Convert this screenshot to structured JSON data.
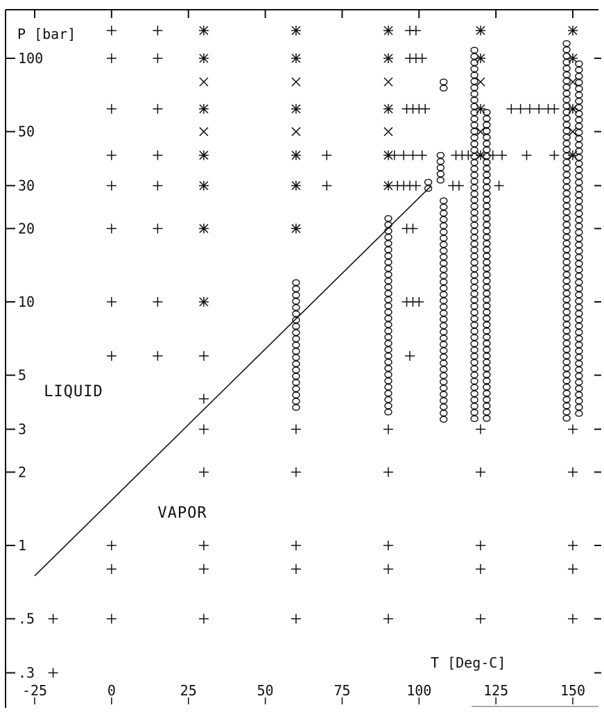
{
  "chart_data": {
    "type": "scatter",
    "title": "",
    "xlabel": "T [Deg-C]",
    "ylabel": "P [bar]",
    "x_scale": "linear",
    "y_scale": "log",
    "xlim": [
      -25,
      160
    ],
    "ylim": [
      0.25,
      150
    ],
    "x_ticks": [
      -25,
      0,
      25,
      50,
      75,
      100,
      125,
      150
    ],
    "x_tick_labels": [
      "-25",
      "0",
      "25",
      "50",
      "75",
      "100",
      "125",
      "150"
    ],
    "y_ticks": [
      100,
      50,
      30,
      20,
      10,
      5,
      3,
      2,
      1,
      0.5,
      0.3
    ],
    "y_tick_labels": [
      "100",
      "50",
      "30",
      "20",
      "10",
      "5",
      "3",
      "2",
      "1",
      ".5",
      ".3"
    ],
    "grid": false,
    "annotations": [
      {
        "text": "LIQUID",
        "x": -22,
        "y": 4.1
      },
      {
        "text": "VAPOR",
        "x": 15,
        "y": 1.3
      }
    ],
    "saturation_line": {
      "x": [
        -25,
        104
      ],
      "y": [
        0.75,
        30
      ]
    },
    "series": [
      {
        "marker": "+",
        "points": [
          [
            0,
            130
          ],
          [
            15,
            130
          ],
          [
            0,
            100
          ],
          [
            15,
            100
          ],
          [
            0,
            62
          ],
          [
            15,
            62
          ],
          [
            0,
            40
          ],
          [
            15,
            40
          ],
          [
            0,
            30
          ],
          [
            15,
            30
          ],
          [
            0,
            20
          ],
          [
            15,
            20
          ],
          [
            0,
            10
          ],
          [
            15,
            10
          ],
          [
            0,
            6
          ],
          [
            15,
            6
          ],
          [
            0,
            1.0
          ],
          [
            0,
            0.8
          ],
          [
            0,
            0.5
          ],
          [
            -19,
            0.5
          ],
          [
            -19,
            0.3
          ],
          [
            30,
            6
          ],
          [
            30,
            4
          ],
          [
            30,
            3
          ],
          [
            30,
            2
          ],
          [
            30,
            1.0
          ],
          [
            30,
            0.8
          ],
          [
            30,
            0.5
          ],
          [
            60,
            3
          ],
          [
            60,
            2
          ],
          [
            60,
            1.0
          ],
          [
            60,
            0.8
          ],
          [
            60,
            0.5
          ],
          [
            70,
            40
          ],
          [
            70,
            30
          ],
          [
            90,
            3
          ],
          [
            90,
            2
          ],
          [
            90,
            1.0
          ],
          [
            90,
            0.8
          ],
          [
            90,
            0.5
          ],
          [
            97,
            130
          ],
          [
            99,
            130
          ],
          [
            97,
            100
          ],
          [
            99,
            100
          ],
          [
            101,
            100
          ],
          [
            96,
            62
          ],
          [
            98,
            62
          ],
          [
            100,
            62
          ],
          [
            102,
            62
          ],
          [
            92,
            40
          ],
          [
            95,
            40
          ],
          [
            98,
            40
          ],
          [
            101,
            40
          ],
          [
            93,
            30
          ],
          [
            95,
            30
          ],
          [
            97,
            30
          ],
          [
            99,
            30
          ],
          [
            96,
            20
          ],
          [
            98,
            20
          ],
          [
            96,
            10
          ],
          [
            98,
            10
          ],
          [
            100,
            10
          ],
          [
            97,
            6
          ],
          [
            112,
            40
          ],
          [
            114,
            40
          ],
          [
            116,
            40
          ],
          [
            124,
            40
          ],
          [
            127,
            40
          ],
          [
            111,
            30
          ],
          [
            113,
            30
          ],
          [
            126,
            30
          ],
          [
            130,
            62
          ],
          [
            133,
            62
          ],
          [
            136,
            62
          ],
          [
            139,
            62
          ],
          [
            142,
            62
          ],
          [
            144,
            62
          ],
          [
            135,
            40
          ],
          [
            144,
            40
          ],
          [
            120,
            3
          ],
          [
            120,
            2
          ],
          [
            120,
            1.0
          ],
          [
            120,
            0.8
          ],
          [
            120,
            0.5
          ],
          [
            150,
            3
          ],
          [
            150,
            2
          ],
          [
            150,
            1.0
          ],
          [
            150,
            0.8
          ],
          [
            150,
            0.5
          ]
        ]
      },
      {
        "marker": "*",
        "points": [
          [
            30,
            130
          ],
          [
            30,
            100
          ],
          [
            30,
            62
          ],
          [
            30,
            40
          ],
          [
            30,
            30
          ],
          [
            30,
            20
          ],
          [
            30,
            10
          ],
          [
            60,
            130
          ],
          [
            60,
            100
          ],
          [
            60,
            62
          ],
          [
            60,
            40
          ],
          [
            60,
            30
          ],
          [
            60,
            20
          ],
          [
            90,
            130
          ],
          [
            90,
            100
          ],
          [
            90,
            62
          ],
          [
            90,
            40
          ],
          [
            90,
            30
          ],
          [
            120,
            130
          ],
          [
            120,
            100
          ],
          [
            120,
            62
          ],
          [
            120,
            40
          ],
          [
            150,
            130
          ],
          [
            150,
            100
          ],
          [
            150,
            62
          ],
          [
            150,
            40
          ]
        ]
      },
      {
        "marker": "x",
        "points": [
          [
            30,
            80
          ],
          [
            30,
            50
          ],
          [
            60,
            80
          ],
          [
            60,
            50
          ],
          [
            90,
            80
          ],
          [
            90,
            50
          ],
          [
            120,
            80
          ],
          [
            120,
            50
          ],
          [
            150,
            80
          ],
          [
            150,
            50
          ]
        ]
      },
      {
        "marker": "o",
        "columns": [
          {
            "x": 60,
            "y_min": 3.6,
            "y_max": 12
          },
          {
            "x": 90,
            "y_min": 3.4,
            "y_max": 22
          },
          {
            "x": 103,
            "y_min": 29,
            "y_max": 31
          },
          {
            "x": 107,
            "y_min": 30,
            "y_max": 40
          },
          {
            "x": 108,
            "y_min": 3.3,
            "y_max": 26
          },
          {
            "x": 108,
            "y_min": 75,
            "y_max": 80
          },
          {
            "x": 118,
            "y_min": 3.3,
            "y_max": 108
          },
          {
            "x": 122,
            "y_min": 3.3,
            "y_max": 60
          },
          {
            "x": 148,
            "y_min": 3.3,
            "y_max": 115
          },
          {
            "x": 152,
            "y_min": 3.3,
            "y_max": 95
          }
        ]
      }
    ]
  }
}
